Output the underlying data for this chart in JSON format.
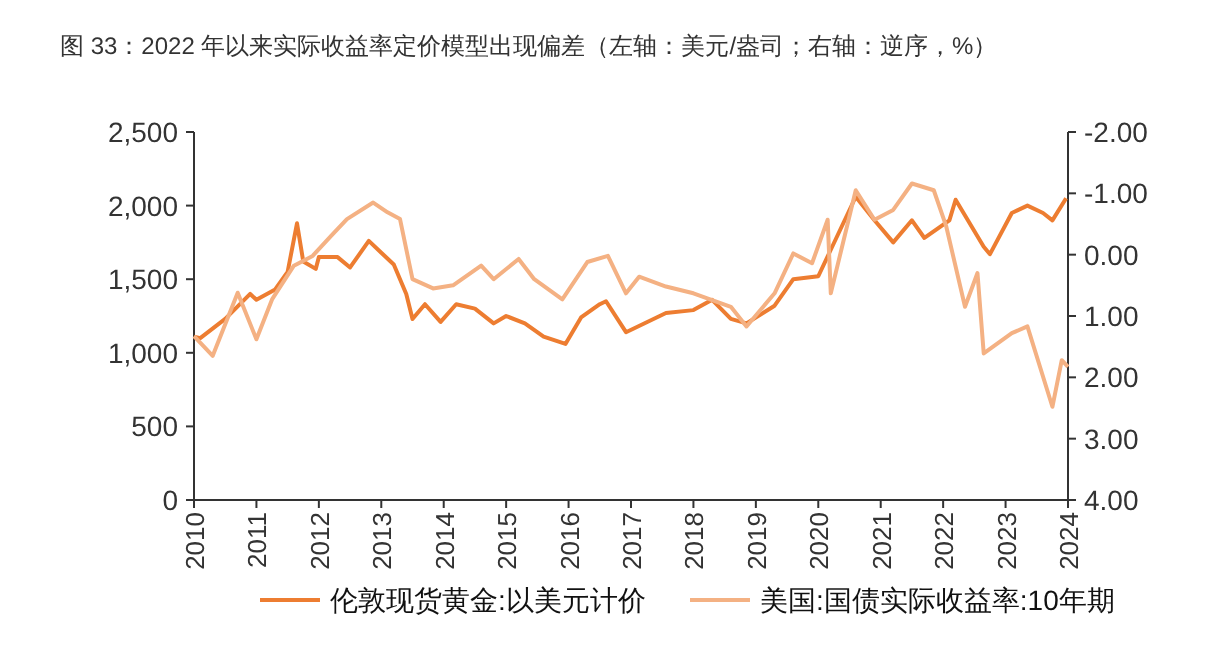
{
  "chart_data": {
    "type": "line",
    "title": "图 33：2022 年以来实际收益率定价模型出现偏差（左轴：美元/盎司；右轴：逆序，%）",
    "xlim": [
      2010,
      2024
    ],
    "xticks": [
      2010,
      2011,
      2012,
      2013,
      2014,
      2015,
      2016,
      2017,
      2018,
      2019,
      2020,
      2021,
      2022,
      2023,
      2024
    ],
    "ylim": [
      0,
      2500
    ],
    "yticks": [
      {
        "value": 0,
        "label": "0"
      },
      {
        "value": 500,
        "label": "500"
      },
      {
        "value": 1000,
        "label": "1,000"
      },
      {
        "value": 1500,
        "label": "1,500"
      },
      {
        "value": 2000,
        "label": "2,000"
      },
      {
        "value": 2500,
        "label": "2,500"
      }
    ],
    "y2lim": [
      4,
      -2
    ],
    "y2ticks": [
      {
        "value": -2,
        "label": "-2.00"
      },
      {
        "value": -1,
        "label": "-1.00"
      },
      {
        "value": 0,
        "label": "0.00"
      },
      {
        "value": 1,
        "label": "1.00"
      },
      {
        "value": 2,
        "label": "2.00"
      },
      {
        "value": 3,
        "label": "3.00"
      },
      {
        "value": 4,
        "label": "4.00"
      }
    ],
    "legend": "bottom",
    "series": [
      {
        "name": "伦敦现货黄金:以美元计价",
        "color": "#ed7d31",
        "x": [
          2010,
          2010.1,
          2010.5,
          2010.9,
          2011,
          2011.3,
          2011.5,
          2011.65,
          2011.75,
          2011.95,
          2012,
          2012.3,
          2012.5,
          2012.8,
          2013,
          2013.2,
          2013.4,
          2013.5,
          2013.7,
          2013.95,
          2014.2,
          2014.5,
          2014.8,
          2015,
          2015.3,
          2015.6,
          2015.95,
          2016.2,
          2016.5,
          2016.6,
          2016.92,
          2017.56,
          2018,
          2018.3,
          2018.6,
          2018.85,
          2019.3,
          2019.6,
          2020,
          2020.2,
          2020.6,
          2020.9,
          2021.2,
          2021.5,
          2021.7,
          2022.1,
          2022.2,
          2022.65,
          2022.75,
          2023.1,
          2023.35,
          2023.6,
          2023.75,
          2023.97
        ],
        "values": [
          1110,
          1100,
          1230,
          1400,
          1360,
          1430,
          1550,
          1880,
          1620,
          1570,
          1650,
          1650,
          1580,
          1760,
          1680,
          1600,
          1400,
          1230,
          1330,
          1210,
          1330,
          1300,
          1200,
          1250,
          1200,
          1110,
          1060,
          1240,
          1330,
          1350,
          1140,
          1270,
          1290,
          1360,
          1230,
          1200,
          1320,
          1500,
          1520,
          1700,
          2060,
          1900,
          1750,
          1900,
          1780,
          1900,
          2040,
          1720,
          1670,
          1950,
          2000,
          1950,
          1900,
          2050
        ]
      },
      {
        "name": "美国:国债实际收益率:10年期",
        "color": "#f4b183",
        "axis": "y2",
        "x": [
          2010,
          2010.3,
          2010.7,
          2011,
          2011.25,
          2011.6,
          2011.9,
          2012.2,
          2012.45,
          2012.87,
          2013.1,
          2013.3,
          2013.5,
          2013.83,
          2014.15,
          2014.6,
          2014.8,
          2015.2,
          2015.45,
          2015.9,
          2016.3,
          2016.63,
          2016.92,
          2017.13,
          2017.56,
          2018,
          2018.6,
          2018.85,
          2019.3,
          2019.6,
          2019.9,
          2020.15,
          2020.2,
          2020.6,
          2020.9,
          2021.2,
          2021.5,
          2021.85,
          2022.05,
          2022.35,
          2022.55,
          2022.65,
          2023.1,
          2023.35,
          2023.75,
          2023.9,
          2024
        ],
        "values": [
          1.33,
          1.65,
          0.62,
          1.38,
          0.73,
          0.18,
          0.02,
          -0.31,
          -0.58,
          -0.85,
          -0.69,
          -0.58,
          0.4,
          0.55,
          0.5,
          0.18,
          0.4,
          0.07,
          0.4,
          0.73,
          0.12,
          0.02,
          0.63,
          0.36,
          0.52,
          0.63,
          0.85,
          1.17,
          0.63,
          -0.02,
          0.14,
          -0.57,
          0.63,
          -1.05,
          -0.57,
          -0.73,
          -1.16,
          -1.05,
          -0.46,
          0.85,
          0.3,
          1.61,
          1.28,
          1.17,
          2.48,
          1.72,
          1.83
        ]
      }
    ]
  }
}
